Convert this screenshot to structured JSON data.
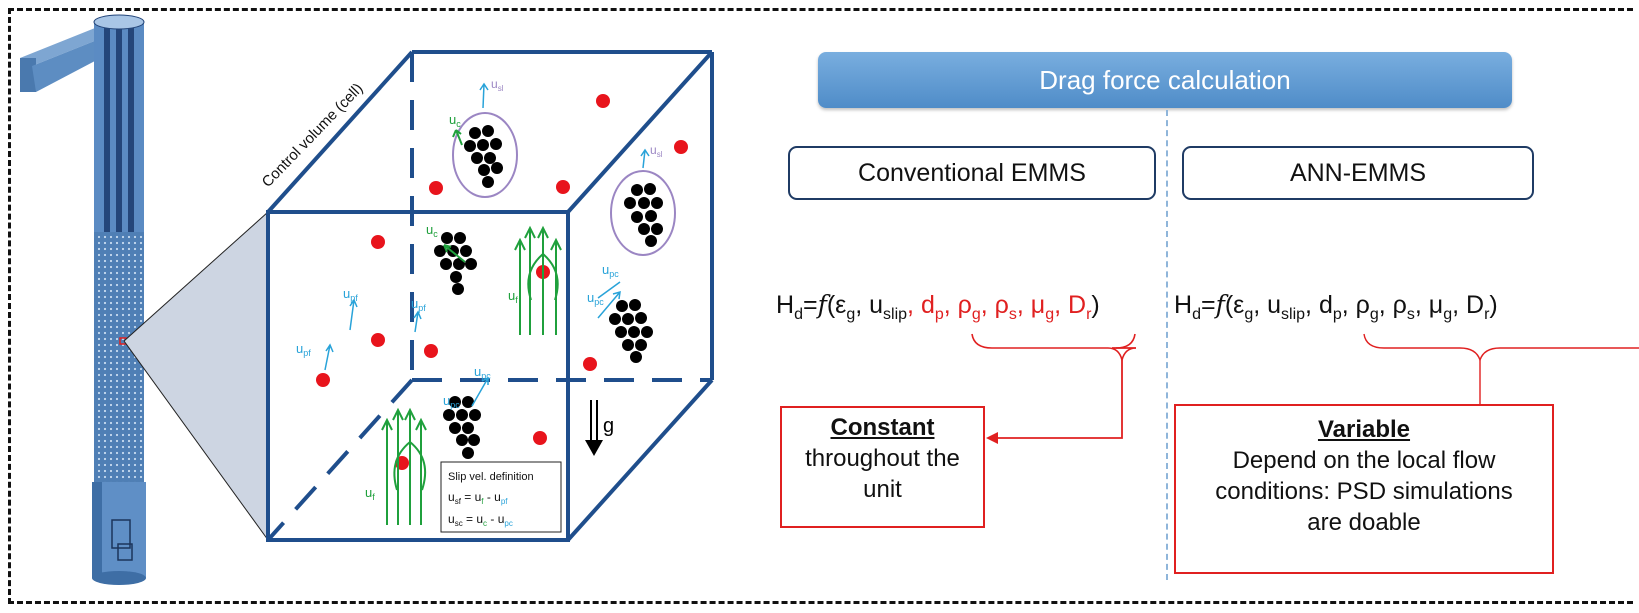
{
  "diagram": {
    "banner_title": "Drag force calculation",
    "cell_label": "Control  volume (cell)",
    "methods": {
      "conventional": "Conventional EMMS",
      "ann": "ANN-EMMS"
    },
    "equation": {
      "lhs": "H",
      "lhs_sub": "d",
      "eq_f": "=",
      "func": "f",
      "eps": "(ε",
      "eps_sub": "g",
      "uslip": ", u",
      "uslip_sub": "slip",
      "dp": ", d",
      "dp_sub": "p",
      "rhog": ", ρ",
      "rhog_sub": "g",
      "rhos": ", ρ",
      "rhos_sub": "s",
      "mug": ", μ",
      "mug_sub": "g",
      "Dr": ", D",
      "Dr_sub": "r",
      "close": ")"
    },
    "constant_box": {
      "title": "Constant",
      "line1": "throughout the",
      "line2": "unit"
    },
    "variable_box": {
      "title": "Variable",
      "line1": "Depend on the local flow",
      "line2": "conditions: PSD simulations",
      "line3": "are doable"
    },
    "slip_definition": {
      "title": "Slip vel. definition",
      "row1_lhs": "u",
      "row1_lhs_sub": "sf",
      "row1_eq": " = u",
      "row1_eq_sub": "f",
      "row1_minus": " - u",
      "row1_minus_sub": "pf",
      "row2_lhs": "u",
      "row2_lhs_sub": "sc",
      "row2_eq": " = u",
      "row2_eq_sub": "c",
      "row2_minus": " - u",
      "row2_minus_sub": "pc"
    },
    "gravity_label": "g",
    "velocity_labels": {
      "u": "u",
      "pf": "pf",
      "pc": "pc",
      "f": "f",
      "c": "c",
      "sl": "sl"
    }
  },
  "colors": {
    "frame": "#111111",
    "cube": "#1f4e8c",
    "banner": "#5b9bd5",
    "highlight_red": "#e02020",
    "particle_red": "#e8141c",
    "flow_green": "#1fa03c",
    "velocity_blue": "#29a3d9",
    "cluster": "#000000",
    "riser": "#4f7fb5"
  }
}
